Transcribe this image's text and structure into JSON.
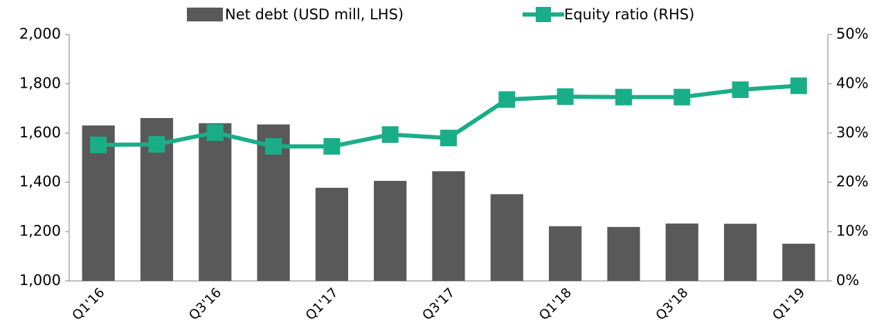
{
  "chart_data": {
    "type": "bar_line",
    "categories": [
      "Q1'16",
      null,
      "Q3'16",
      null,
      "Q1'17",
      null,
      "Q3'17",
      null,
      "Q1'18",
      null,
      "Q3'18",
      null,
      "Q1'19"
    ],
    "series": [
      {
        "name": "Net debt (USD mill, LHS)",
        "type": "bar",
        "color": "#595959",
        "values": [
          1631,
          1661,
          1640,
          1635,
          1378,
          1406,
          1445,
          1352,
          1222,
          1219,
          1233,
          1232,
          1151
        ]
      },
      {
        "name": "Equity ratio (RHS)",
        "type": "line",
        "axis": "y2",
        "color": "#1aae88",
        "values": [
          27.6,
          27.7,
          30.1,
          27.3,
          27.3,
          29.7,
          29.0,
          36.8,
          37.4,
          37.3,
          37.3,
          38.8,
          39.6
        ]
      }
    ],
    "ylim": [
      1000,
      2000
    ],
    "yticks": [
      {
        "value": 1000,
        "label": "1,000"
      },
      {
        "value": 1200,
        "label": "1,200"
      },
      {
        "value": 1400,
        "label": "1,400"
      },
      {
        "value": 1600,
        "label": "1,600"
      },
      {
        "value": 1800,
        "label": "1,800"
      },
      {
        "value": 2000,
        "label": "2,000"
      }
    ],
    "y2lim": [
      0,
      50
    ],
    "y2ticks": [
      {
        "value": 0,
        "label": "0%"
      },
      {
        "value": 10,
        "label": "10%"
      },
      {
        "value": 20,
        "label": "20%"
      },
      {
        "value": 30,
        "label": "30%"
      },
      {
        "value": 40,
        "label": "40%"
      },
      {
        "value": 50,
        "label": "50%"
      }
    ],
    "grid": false,
    "legend": "top"
  }
}
